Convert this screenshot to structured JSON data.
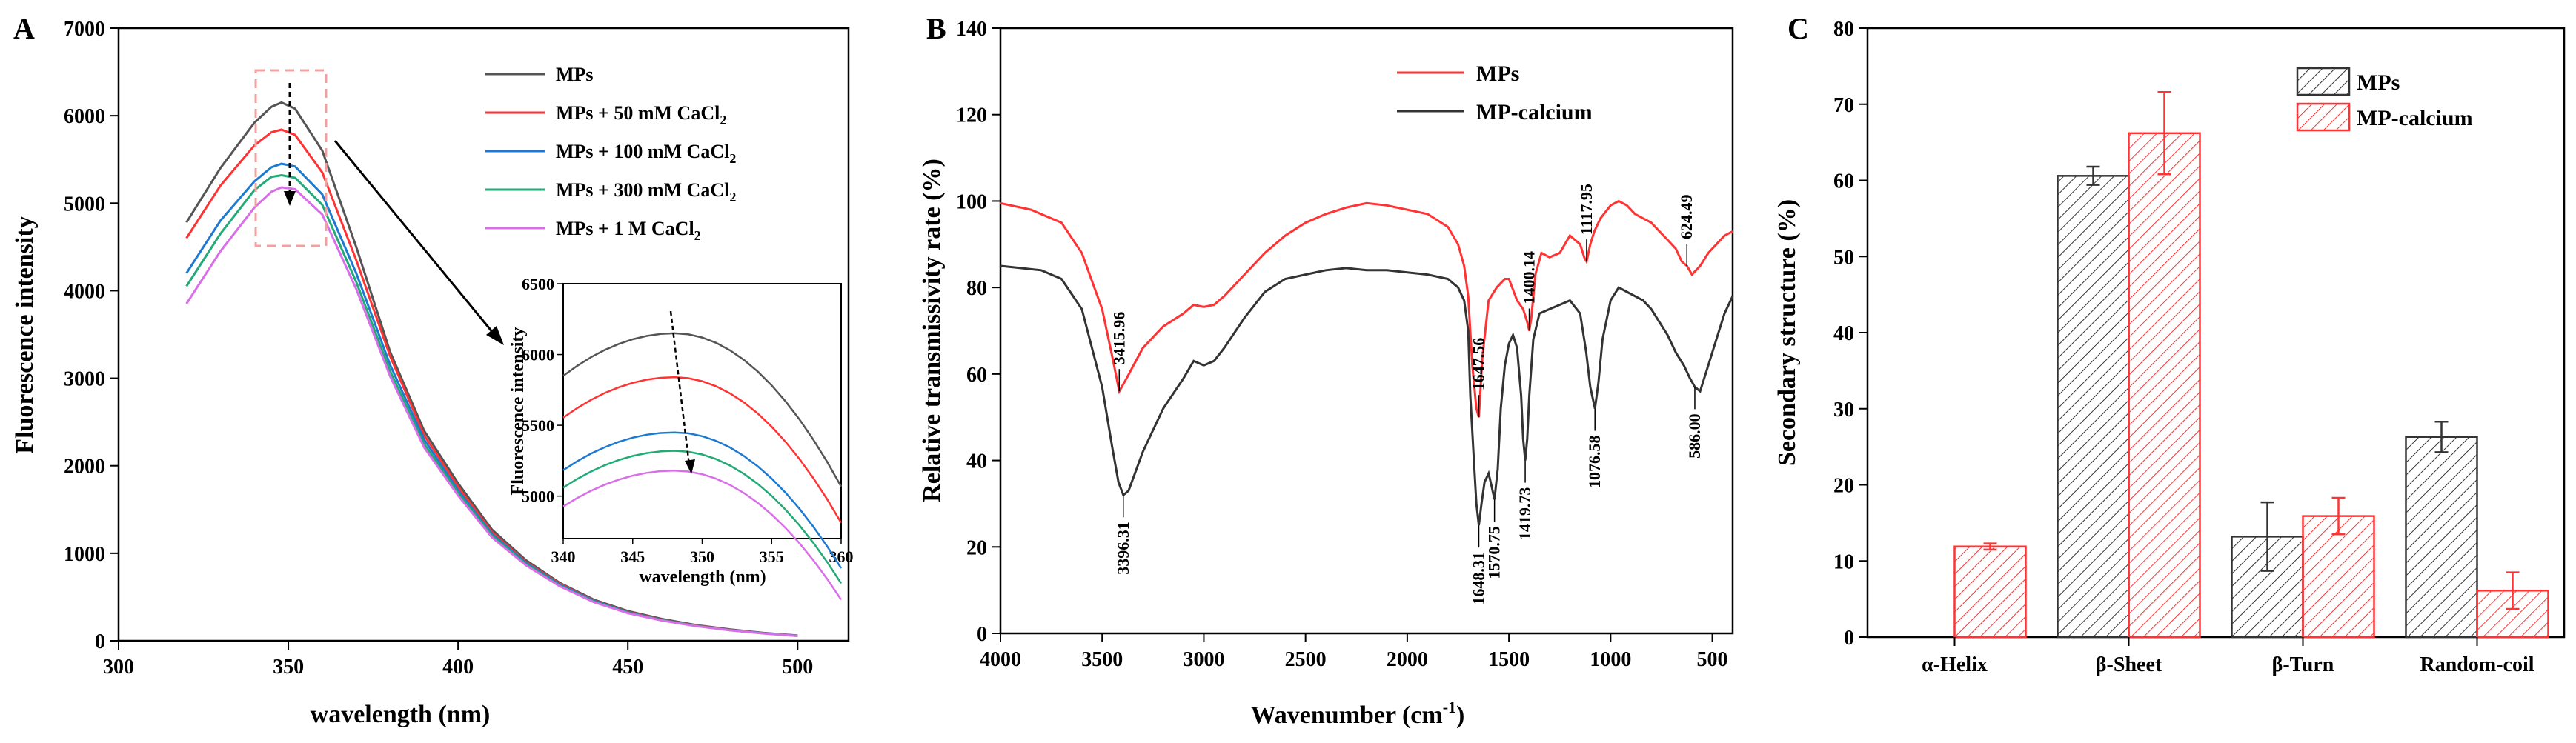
{
  "colors": {
    "mps_gray": "#555555",
    "red": "#ff3333",
    "blue": "#1e7ad0",
    "green": "#22aa77",
    "violet": "#d86ee8",
    "dash_box": "#f4a0a0",
    "mp_calcium": "#333333"
  },
  "chart_data": [
    {
      "panel": "A",
      "type": "line",
      "xlabel": "wavelength (nm)",
      "ylabel": "Fluorescence intensity",
      "xlim": [
        300,
        515
      ],
      "ylim": [
        0,
        7000
      ],
      "xticks": [
        "300",
        "350",
        "400",
        "450",
        "500"
      ],
      "yticks": [
        "0",
        "1000",
        "2000",
        "3000",
        "4000",
        "5000",
        "6000",
        "7000"
      ],
      "legend_position": "top-right",
      "series": [
        {
          "name": "MPs",
          "color": "#555555",
          "x": [
            320,
            330,
            340,
            345,
            348,
            352,
            360,
            370,
            380,
            390,
            400,
            410,
            420,
            430,
            440,
            450,
            460,
            470,
            480,
            490,
            500
          ],
          "y": [
            4780,
            5400,
            5920,
            6100,
            6150,
            6080,
            5600,
            4500,
            3300,
            2400,
            1800,
            1270,
            920,
            660,
            470,
            340,
            250,
            180,
            130,
            90,
            60
          ]
        },
        {
          "name": "MPs + 50 mM CaCl2",
          "color": "#ff3333",
          "x": [
            320,
            330,
            340,
            345,
            348,
            352,
            360,
            370,
            380,
            390,
            400,
            410,
            420,
            430,
            440,
            450,
            460,
            470,
            480,
            490,
            500
          ],
          "y": [
            4600,
            5200,
            5660,
            5810,
            5840,
            5780,
            5350,
            4350,
            3250,
            2350,
            1760,
            1240,
            900,
            650,
            460,
            330,
            240,
            175,
            125,
            88,
            58
          ]
        },
        {
          "name": "MPs + 100 mM CaCl2",
          "color": "#1e7ad0",
          "x": [
            320,
            330,
            340,
            345,
            348,
            352,
            360,
            370,
            380,
            390,
            400,
            410,
            420,
            430,
            440,
            450,
            460,
            470,
            480,
            490,
            500
          ],
          "y": [
            4200,
            4800,
            5250,
            5410,
            5450,
            5420,
            5100,
            4200,
            3150,
            2300,
            1720,
            1220,
            890,
            640,
            455,
            325,
            238,
            172,
            123,
            86,
            57
          ]
        },
        {
          "name": "MPs + 300 mM CaCl2",
          "color": "#22aa77",
          "x": [
            320,
            330,
            340,
            345,
            348,
            352,
            360,
            370,
            380,
            390,
            400,
            410,
            420,
            430,
            440,
            450,
            460,
            470,
            480,
            490,
            500
          ],
          "y": [
            4050,
            4650,
            5150,
            5300,
            5320,
            5290,
            4980,
            4100,
            3080,
            2250,
            1690,
            1200,
            875,
            630,
            448,
            320,
            235,
            170,
            121,
            85,
            56
          ]
        },
        {
          "name": "MPs + 1 M CaCl2",
          "color": "#d86ee8",
          "x": [
            320,
            330,
            340,
            345,
            348,
            352,
            360,
            370,
            380,
            390,
            400,
            410,
            420,
            430,
            440,
            450,
            460,
            470,
            480,
            490,
            500
          ],
          "y": [
            3850,
            4450,
            4950,
            5130,
            5180,
            5160,
            4870,
            4020,
            3020,
            2210,
            1660,
            1180,
            862,
            622,
            442,
            316,
            232,
            168,
            120,
            84,
            55
          ]
        }
      ],
      "legend_labels": [
        {
          "main": "MPs",
          "sub": ""
        },
        {
          "main": "MPs + 50 mM CaCl",
          "sub": "2"
        },
        {
          "main": "MPs + 100 mM CaCl",
          "sub": "2"
        },
        {
          "main": "MPs + 300 mM CaCl",
          "sub": "2"
        },
        {
          "main": "MPs + 1 M CaCl",
          "sub": "2"
        }
      ],
      "inset": {
        "xlim": [
          340,
          360
        ],
        "ylim": [
          4700,
          6500
        ],
        "xlabel": "wavelength (nm)",
        "ylabel": "Fluorescence intensity",
        "xticks": [
          "340",
          "345",
          "350",
          "355",
          "360"
        ],
        "yticks": [
          "5000",
          "5500",
          "6000",
          "6500"
        ]
      }
    },
    {
      "panel": "B",
      "type": "line",
      "xlabel_main": "Wavenumber (cm",
      "xlabel_sup": "-1",
      "xlabel_end": ")",
      "ylabel": "Relative transmissivity rate (%)",
      "xlim": [
        4000,
        400
      ],
      "ylim": [
        0,
        140
      ],
      "xticks": [
        "4000",
        "3500",
        "3000",
        "2500",
        "2000",
        "1500",
        "1000",
        "500"
      ],
      "yticks": [
        "0",
        "20",
        "40",
        "60",
        "80",
        "100",
        "120",
        "140"
      ],
      "legend_position": "top-right",
      "series": [
        {
          "name": "MPs",
          "color": "#ff3333",
          "x": [
            4000,
            3850,
            3700,
            3600,
            3500,
            3450,
            3416,
            3380,
            3300,
            3200,
            3100,
            3050,
            3000,
            2950,
            2900,
            2800,
            2700,
            2600,
            2500,
            2400,
            2300,
            2200,
            2100,
            2000,
            1900,
            1800,
            1750,
            1720,
            1700,
            1680,
            1660,
            1648,
            1630,
            1600,
            1560,
            1540,
            1520,
            1500,
            1460,
            1430,
            1410,
            1400,
            1390,
            1370,
            1340,
            1300,
            1250,
            1200,
            1150,
            1130,
            1118,
            1100,
            1080,
            1050,
            1000,
            960,
            920,
            880,
            840,
            800,
            760,
            720,
            680,
            650,
            625,
            600,
            560,
            520,
            480,
            440,
            400
          ],
          "y": [
            99.5,
            98,
            95,
            88,
            75,
            64,
            56,
            59,
            66,
            71,
            74,
            76,
            75.5,
            76,
            78,
            83,
            88,
            92,
            95,
            97,
            98.5,
            99.5,
            99,
            98,
            97,
            94,
            90,
            85,
            78,
            62,
            52,
            50,
            64,
            77,
            80,
            81,
            82,
            82,
            77,
            75,
            72,
            70,
            73,
            83,
            88,
            87,
            88,
            92,
            90,
            87,
            86,
            90,
            93,
            96,
            99,
            100,
            99,
            97,
            96,
            95,
            93,
            91,
            89,
            86,
            85,
            83,
            85,
            88,
            90,
            92,
            93
          ]
        },
        {
          "name": "MP-calcium",
          "color": "#333333",
          "x": [
            4000,
            3900,
            3800,
            3700,
            3600,
            3500,
            3450,
            3420,
            3396,
            3370,
            3300,
            3200,
            3100,
            3050,
            3000,
            2950,
            2900,
            2800,
            2700,
            2600,
            2500,
            2400,
            2300,
            2200,
            2100,
            2000,
            1900,
            1800,
            1750,
            1720,
            1700,
            1690,
            1670,
            1660,
            1648,
            1635,
            1620,
            1600,
            1585,
            1571,
            1555,
            1540,
            1520,
            1500,
            1480,
            1460,
            1440,
            1430,
            1420,
            1410,
            1400,
            1380,
            1350,
            1300,
            1250,
            1200,
            1150,
            1120,
            1100,
            1077,
            1060,
            1040,
            1000,
            960,
            920,
            880,
            840,
            800,
            760,
            720,
            680,
            640,
            610,
            586,
            560,
            520,
            480,
            440,
            400
          ],
          "y": [
            85,
            84.5,
            84,
            82,
            75,
            57,
            43,
            35,
            32,
            33,
            42,
            52,
            59,
            63,
            62,
            63,
            66,
            73,
            79,
            82,
            83,
            84,
            84.5,
            84,
            84,
            83.5,
            83,
            82,
            80,
            77,
            70,
            55,
            38,
            30,
            25,
            30,
            35,
            37,
            34,
            31,
            38,
            52,
            62,
            67,
            69,
            66,
            55,
            45,
            40,
            45,
            55,
            68,
            74,
            75,
            76,
            77,
            74,
            65,
            57,
            52,
            58,
            68,
            77,
            80,
            79,
            78,
            77,
            75,
            72,
            69,
            65,
            62,
            59,
            57,
            56,
            62,
            68,
            74,
            78
          ]
        }
      ],
      "annotations": [
        {
          "label": "3415.96",
          "x": 3416,
          "series": "MPs"
        },
        {
          "label": "1647.56",
          "x": 1648,
          "series": "MPs"
        },
        {
          "label": "1400.14",
          "x": 1400,
          "series": "MPs"
        },
        {
          "label": "1117.95",
          "x": 1118,
          "series": "MPs"
        },
        {
          "label": "624.49",
          "x": 625,
          "series": "MPs"
        },
        {
          "label": "3396.31",
          "x": 3396,
          "series": "MP-calcium"
        },
        {
          "label": "1648.31",
          "x": 1648,
          "series": "MP-calcium"
        },
        {
          "label": "1570.75",
          "x": 1571,
          "series": "MP-calcium"
        },
        {
          "label": "1419.73",
          "x": 1420,
          "series": "MP-calcium"
        },
        {
          "label": "1076.58",
          "x": 1077,
          "series": "MP-calcium"
        },
        {
          "label": "586.00",
          "x": 586,
          "series": "MP-calcium"
        }
      ]
    },
    {
      "panel": "C",
      "type": "bar",
      "ylabel": "Secondary structure (%)",
      "xlabel": "",
      "ylim": [
        0,
        80
      ],
      "yticks": [
        "0",
        "10",
        "20",
        "30",
        "40",
        "50",
        "60",
        "70",
        "80"
      ],
      "categories": [
        "α-Helix",
        "β-Sheet",
        "β-Turn",
        "Random-coil"
      ],
      "legend_position": "top-right",
      "series": [
        {
          "name": "MPs",
          "color": "#333333",
          "values": [
            0,
            60.6,
            13.2,
            26.3
          ],
          "errors": [
            0,
            1.2,
            4.5,
            2.0
          ]
        },
        {
          "name": "MP-calcium",
          "color": "#ff3333",
          "values": [
            11.9,
            66.2,
            15.9,
            6.1
          ],
          "errors": [
            0.4,
            5.4,
            2.4,
            2.4
          ]
        }
      ]
    }
  ]
}
